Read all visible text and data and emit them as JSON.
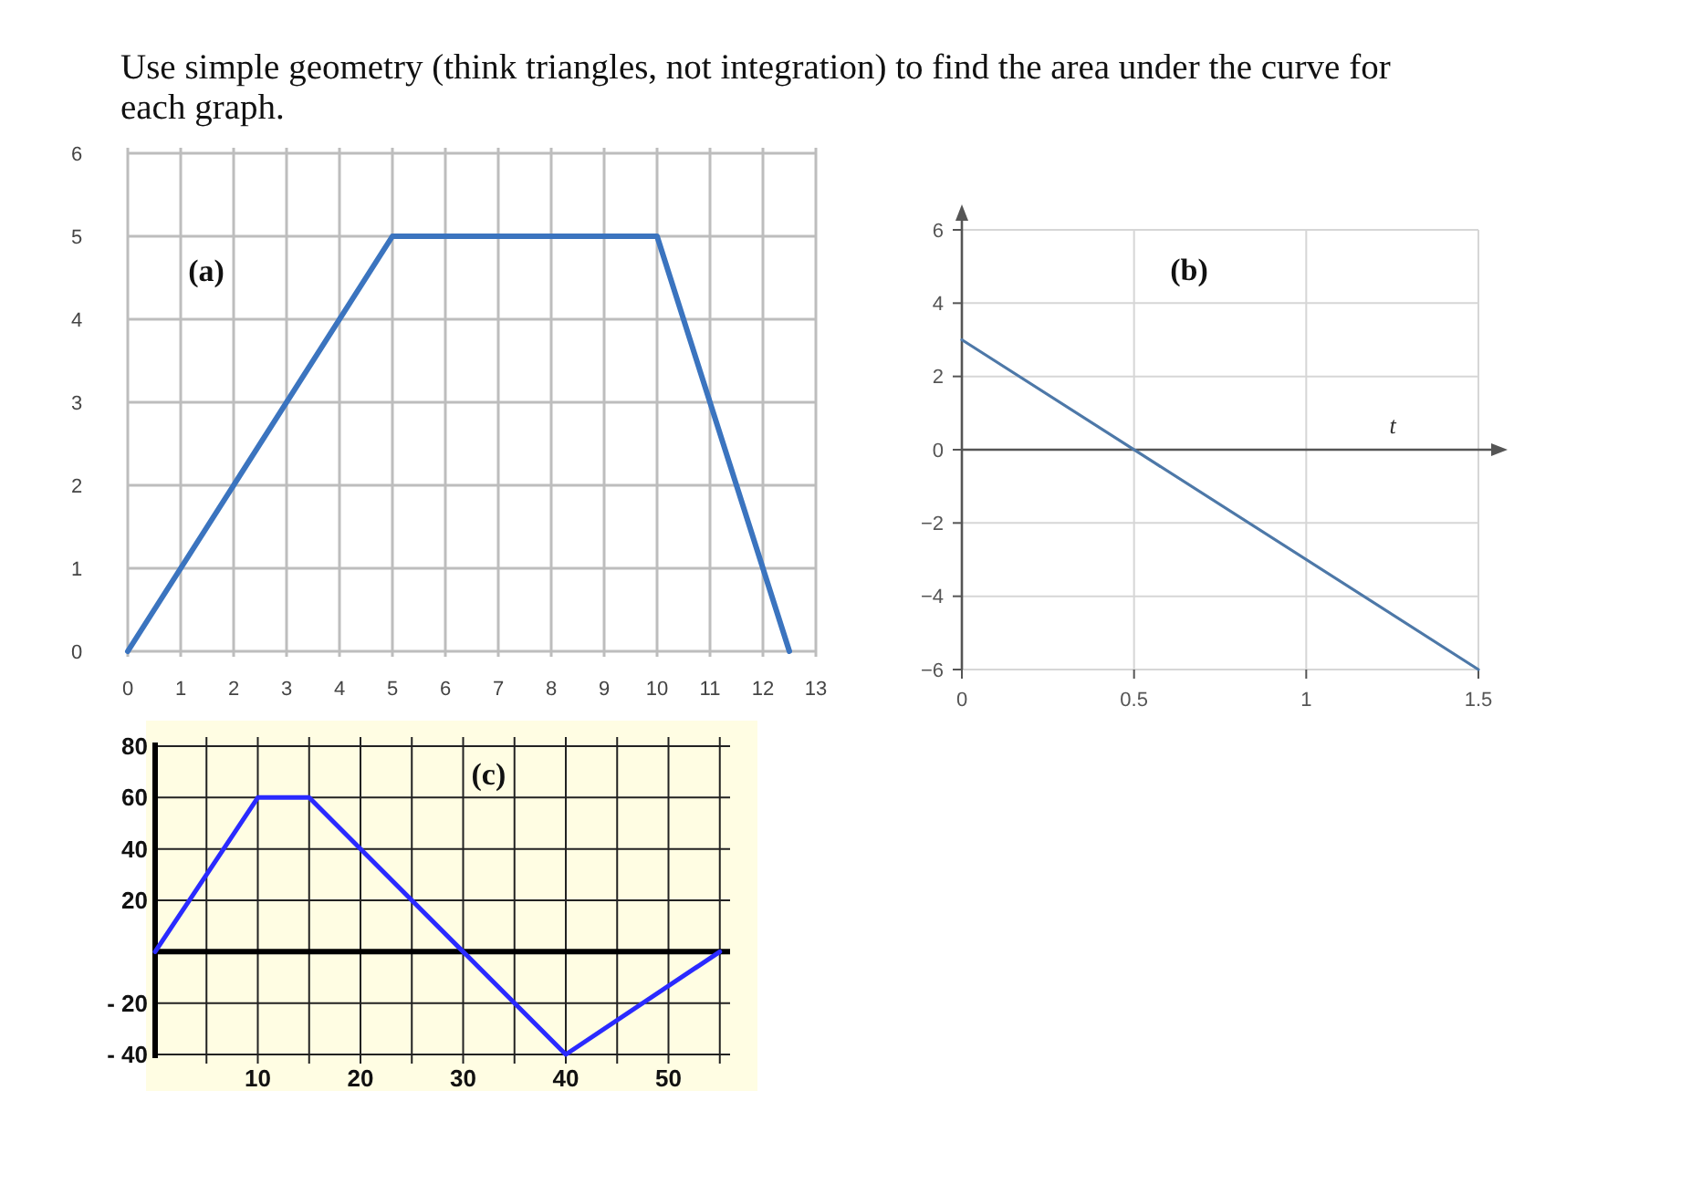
{
  "chart_data": [
    {
      "type": "line",
      "title": "Use simple geometry (think triangles, not integration) to find the area under the curve for each graph.",
      "annotations": [
        "(a)"
      ],
      "x": [
        0,
        5,
        10,
        12.5
      ],
      "values": [
        0,
        5,
        5,
        0
      ],
      "color": "#3b74bf",
      "xlim": [
        0,
        13
      ],
      "ylim": [
        0,
        6
      ],
      "xticks": [
        0,
        1,
        2,
        3,
        4,
        5,
        6,
        7,
        8,
        9,
        10,
        11,
        12,
        13
      ],
      "yticks": [
        0,
        1,
        2,
        3,
        4,
        5,
        6
      ],
      "grid": true
    },
    {
      "type": "line",
      "annotations": [
        "(b)"
      ],
      "xlabel": "t",
      "x": [
        0,
        1.5
      ],
      "values": [
        3,
        -6
      ],
      "color": "#4d78a8",
      "xlim": [
        0,
        1.5
      ],
      "ylim": [
        -6,
        6
      ],
      "xticks": [
        0,
        0.5,
        1,
        1.5
      ],
      "yticks": [
        6,
        4,
        2,
        0,
        {
          "value": -2,
          "label": "−2"
        },
        {
          "value": -4,
          "label": "−4"
        },
        {
          "value": -6,
          "label": "−6"
        }
      ],
      "grid": true
    },
    {
      "type": "line",
      "annotations": [
        "(c)"
      ],
      "x": [
        0,
        10,
        15,
        40,
        55
      ],
      "values": [
        0,
        60,
        60,
        -40,
        0
      ],
      "color": "#2a2aff",
      "xlim": [
        0,
        56
      ],
      "ylim": [
        -40,
        80
      ],
      "xticks": [
        {
          "value": 5,
          "label": null
        },
        10,
        {
          "value": 15,
          "label": null
        },
        20,
        {
          "value": 25,
          "label": null
        },
        30,
        {
          "value": 35,
          "label": null
        },
        40,
        {
          "value": 45,
          "label": null
        },
        50,
        {
          "value": 55,
          "label": null
        }
      ],
      "yticks": [
        80,
        60,
        40,
        20,
        {
          "value": 0,
          "label": null
        },
        {
          "value": -20,
          "label": "- 20"
        },
        {
          "value": -40,
          "label": "- 40"
        }
      ],
      "grid": true
    }
  ]
}
